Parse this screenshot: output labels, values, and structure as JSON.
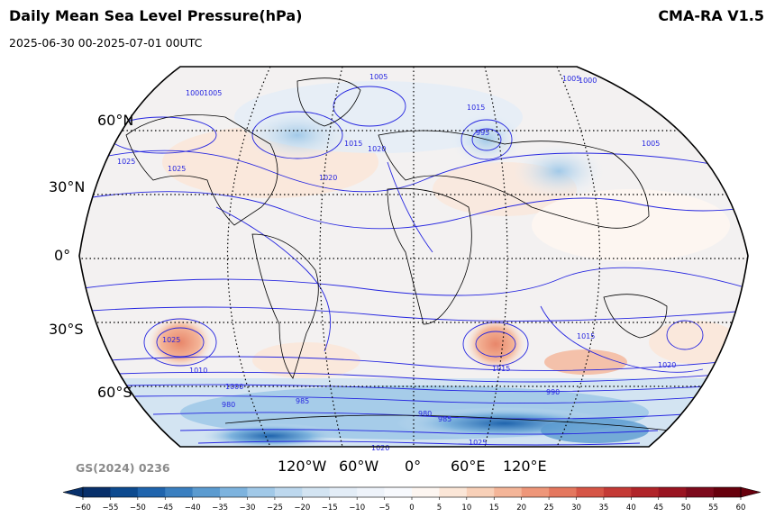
{
  "header": {
    "title": "Daily Mean Sea Level Pressure(hPa)",
    "model": "CMA-RA V1.5",
    "period": "2025-06-30 00-2025-07-01 00UTC"
  },
  "credit": "GS(2024) 0236",
  "latitude_labels": [
    "60°N",
    "30°N",
    "0°",
    "30°S",
    "60°S"
  ],
  "longitude_labels": [
    "120°W",
    "60°W",
    "0°",
    "60°E",
    "120°E"
  ],
  "colorbar": {
    "ticks": [
      "−60",
      "−55",
      "−50",
      "−45",
      "−40",
      "−35",
      "−30",
      "−25",
      "−20",
      "−15",
      "−10",
      "−5",
      "0",
      "5",
      "10",
      "15",
      "20",
      "25",
      "30",
      "35",
      "40",
      "45",
      "50",
      "55",
      "60"
    ],
    "colors": [
      "#08306b",
      "#0d4a8f",
      "#1f64ad",
      "#3a7fc0",
      "#5b9bd0",
      "#7db3de",
      "#a1c9e8",
      "#bdd8ee",
      "#d3e4f2",
      "#e3edf7",
      "#eef3fa",
      "#f7f9fd",
      "#fdf6f1",
      "#fbe6d7",
      "#f8d0b8",
      "#f4b598",
      "#ee9679",
      "#e4775e",
      "#d65546",
      "#c43a36",
      "#b02429",
      "#991421",
      "#7d0a1c",
      "#67000d"
    ]
  },
  "contour_labels": [
    "1005",
    "1000",
    "1010",
    "1015",
    "995",
    "1020",
    "1025",
    "985",
    "980",
    "990"
  ]
}
